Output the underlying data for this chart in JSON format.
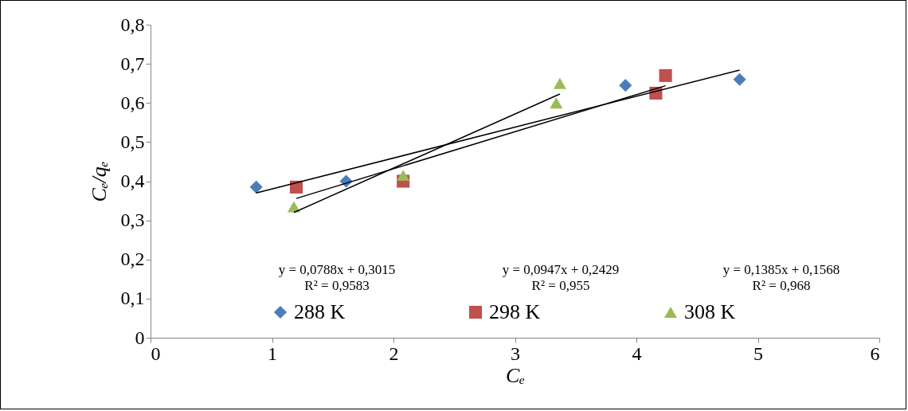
{
  "chart_data": {
    "type": "scatter",
    "xlabel": "Cₑ",
    "ylabel": "Cₑ/qₑ",
    "xlim": [
      0,
      6
    ],
    "xticks": [
      0,
      1,
      2,
      3,
      4,
      5,
      6
    ],
    "ylim": [
      0,
      0.8
    ],
    "yticks": [
      0,
      {
        "value": 0.1,
        "label": "0,1"
      },
      {
        "value": 0.2,
        "label": "0,2"
      },
      {
        "value": 0.3,
        "label": "0,3"
      },
      {
        "value": 0.4,
        "label": "0,4"
      },
      {
        "value": 0.5,
        "label": "0,5"
      },
      {
        "value": 0.6,
        "label": "0,6"
      },
      {
        "value": 0.7,
        "label": "0,7"
      },
      {
        "value": 0.8,
        "label": "0,8"
      }
    ],
    "grid": false,
    "legend": "bottom",
    "series": [
      {
        "name": "288 K",
        "marker": "diamond",
        "color": "#4a7ebb",
        "x": [
          0.87,
          1.61,
          3.91,
          4.85
        ],
        "values": [
          0.385,
          0.4,
          0.645,
          0.66
        ]
      },
      {
        "name": "298 K",
        "marker": "square",
        "color": "#c0504d",
        "x": [
          1.2,
          2.08,
          4.16,
          4.24
        ],
        "values": [
          0.385,
          0.4,
          0.625,
          0.67
        ]
      },
      {
        "name": "308 K",
        "marker": "triangle",
        "color": "#9bbb59",
        "x": [
          1.18,
          2.08,
          3.34,
          3.37
        ],
        "values": [
          0.335,
          0.415,
          0.6,
          0.65
        ]
      },
      {
        "type": "line",
        "color": "#000000",
        "x": [
          0.87,
          4.85
        ],
        "values": [
          0.37,
          0.684
        ]
      },
      {
        "type": "line",
        "color": "#000000",
        "x": [
          1.2,
          4.24
        ],
        "values": [
          0.356,
          0.644
        ]
      },
      {
        "type": "line",
        "color": "#000000",
        "x": [
          1.18,
          3.37
        ],
        "values": [
          0.32,
          0.623
        ]
      }
    ],
    "annotations": [
      "y = 0,0788x + 0,3015",
      "R² = 0,9583",
      "y = 0,0947x + 0,2429",
      "R² = 0,955",
      "y = 0,1385x + 0,1568",
      "R² = 0,968"
    ]
  }
}
